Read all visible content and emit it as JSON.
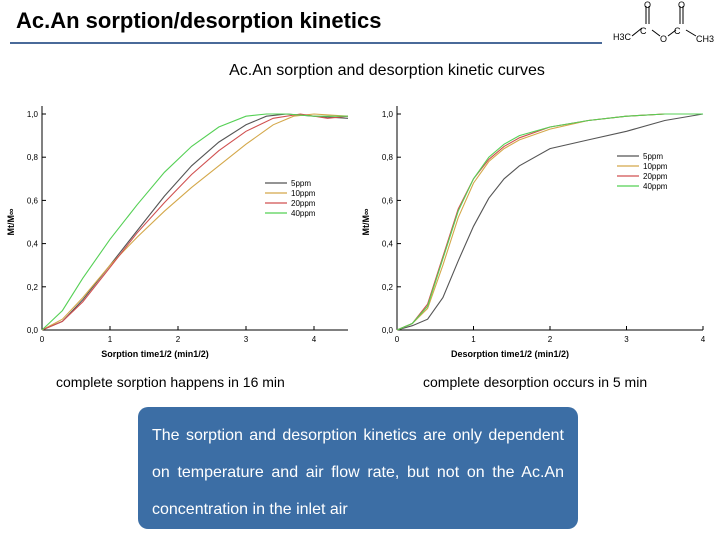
{
  "slide_title": "Ac.An sorption/desorption kinetics",
  "subtitle": "Ac.An sorption and desorption kinetic curves",
  "logo": {
    "labels": [
      "H3C",
      "C",
      "O",
      "C",
      "CH3",
      "O",
      "O"
    ]
  },
  "captions": {
    "left": "complete sorption happens in 16 min",
    "right": "complete desorption occurs in 5 min"
  },
  "note": "The sorption and desorption kinetics are only dependent on temperature and air flow rate, but not on the Ac.An concentration in the inlet air",
  "colors": {
    "title_rule": "#4a6a99",
    "note_bg": "#3c6ea5",
    "note_text": "#ffffff"
  },
  "chart_data": [
    {
      "type": "line",
      "xlabel": "Sorption time1/2 (min1/2)",
      "ylabel": "Mt/M∞",
      "xlim": [
        0,
        4.5
      ],
      "ylim": [
        0,
        1.0
      ],
      "xticks": [
        "0",
        "1",
        "2",
        "3",
        "4"
      ],
      "yticks": [
        "0,0",
        "0,2",
        "0,4",
        "0,6",
        "0,8",
        "1,0"
      ],
      "legend_position": "center-right",
      "grid": false,
      "series": [
        {
          "name": "5ppm",
          "color": "#555555",
          "x": [
            0,
            0.3,
            0.6,
            1.0,
            1.4,
            1.8,
            2.2,
            2.6,
            3.0,
            3.3,
            3.6,
            4.0,
            4.5
          ],
          "y": [
            0,
            0.04,
            0.14,
            0.3,
            0.46,
            0.62,
            0.76,
            0.87,
            0.95,
            0.99,
            1.0,
            0.99,
            0.98
          ]
        },
        {
          "name": "10ppm",
          "color": "#d4a84a",
          "x": [
            0,
            0.3,
            0.6,
            1.0,
            1.4,
            1.8,
            2.2,
            2.6,
            3.0,
            3.4,
            3.7,
            4.0,
            4.5
          ],
          "y": [
            0,
            0.05,
            0.15,
            0.3,
            0.43,
            0.55,
            0.66,
            0.76,
            0.86,
            0.95,
            0.99,
            1.0,
            0.99
          ]
        },
        {
          "name": "20ppm",
          "color": "#d05050",
          "x": [
            0,
            0.3,
            0.6,
            1.0,
            1.4,
            1.8,
            2.2,
            2.6,
            3.0,
            3.4,
            3.8,
            4.2,
            4.5
          ],
          "y": [
            0,
            0.04,
            0.13,
            0.29,
            0.45,
            0.59,
            0.72,
            0.83,
            0.92,
            0.98,
            1.0,
            0.98,
            0.99
          ]
        },
        {
          "name": "40ppm",
          "color": "#55d055",
          "x": [
            0,
            0.3,
            0.6,
            1.0,
            1.4,
            1.8,
            2.2,
            2.6,
            3.0,
            3.3,
            3.6,
            4.0,
            4.5
          ],
          "y": [
            0,
            0.09,
            0.24,
            0.42,
            0.58,
            0.73,
            0.85,
            0.94,
            0.99,
            1.0,
            1.0,
            0.99,
            0.99
          ]
        }
      ]
    },
    {
      "type": "line",
      "xlabel": "Desorption time1/2 (min1/2)",
      "ylabel": "Mt/M∞",
      "xlim": [
        0,
        4.0
      ],
      "ylim": [
        0,
        1.0
      ],
      "xticks": [
        "0",
        "1",
        "2",
        "3",
        "4"
      ],
      "yticks": [
        "0,0",
        "0,2",
        "0,4",
        "0,6",
        "0,8",
        "1,0"
      ],
      "legend_position": "top-right",
      "grid": false,
      "series": [
        {
          "name": "5ppm",
          "color": "#555555",
          "x": [
            0,
            0.2,
            0.4,
            0.6,
            0.8,
            1.0,
            1.2,
            1.4,
            1.6,
            2.0,
            2.5,
            3.0,
            3.5,
            4.0
          ],
          "y": [
            0,
            0.02,
            0.05,
            0.15,
            0.32,
            0.48,
            0.61,
            0.7,
            0.76,
            0.84,
            0.88,
            0.92,
            0.97,
            1.0
          ]
        },
        {
          "name": "10ppm",
          "color": "#d4a84a",
          "x": [
            0,
            0.2,
            0.4,
            0.6,
            0.8,
            1.0,
            1.2,
            1.4,
            1.6,
            2.0,
            2.5,
            3.0,
            3.5,
            4.0
          ],
          "y": [
            0,
            0.03,
            0.1,
            0.3,
            0.52,
            0.68,
            0.78,
            0.84,
            0.88,
            0.93,
            0.97,
            0.99,
            1.0,
            1.0
          ]
        },
        {
          "name": "20ppm",
          "color": "#d05050",
          "x": [
            0,
            0.2,
            0.4,
            0.6,
            0.8,
            1.0,
            1.2,
            1.4,
            1.6,
            2.0,
            2.5,
            3.0,
            3.5,
            4.0
          ],
          "y": [
            0,
            0.03,
            0.12,
            0.34,
            0.56,
            0.7,
            0.79,
            0.85,
            0.89,
            0.94,
            0.97,
            0.99,
            1.0,
            1.0
          ]
        },
        {
          "name": "40ppm",
          "color": "#55d055",
          "x": [
            0,
            0.2,
            0.4,
            0.6,
            0.8,
            1.0,
            1.2,
            1.4,
            1.6,
            2.0,
            2.5,
            3.0,
            3.5,
            4.0
          ],
          "y": [
            0,
            0.03,
            0.11,
            0.33,
            0.55,
            0.7,
            0.8,
            0.86,
            0.9,
            0.94,
            0.97,
            0.99,
            1.0,
            1.0
          ]
        }
      ]
    }
  ]
}
